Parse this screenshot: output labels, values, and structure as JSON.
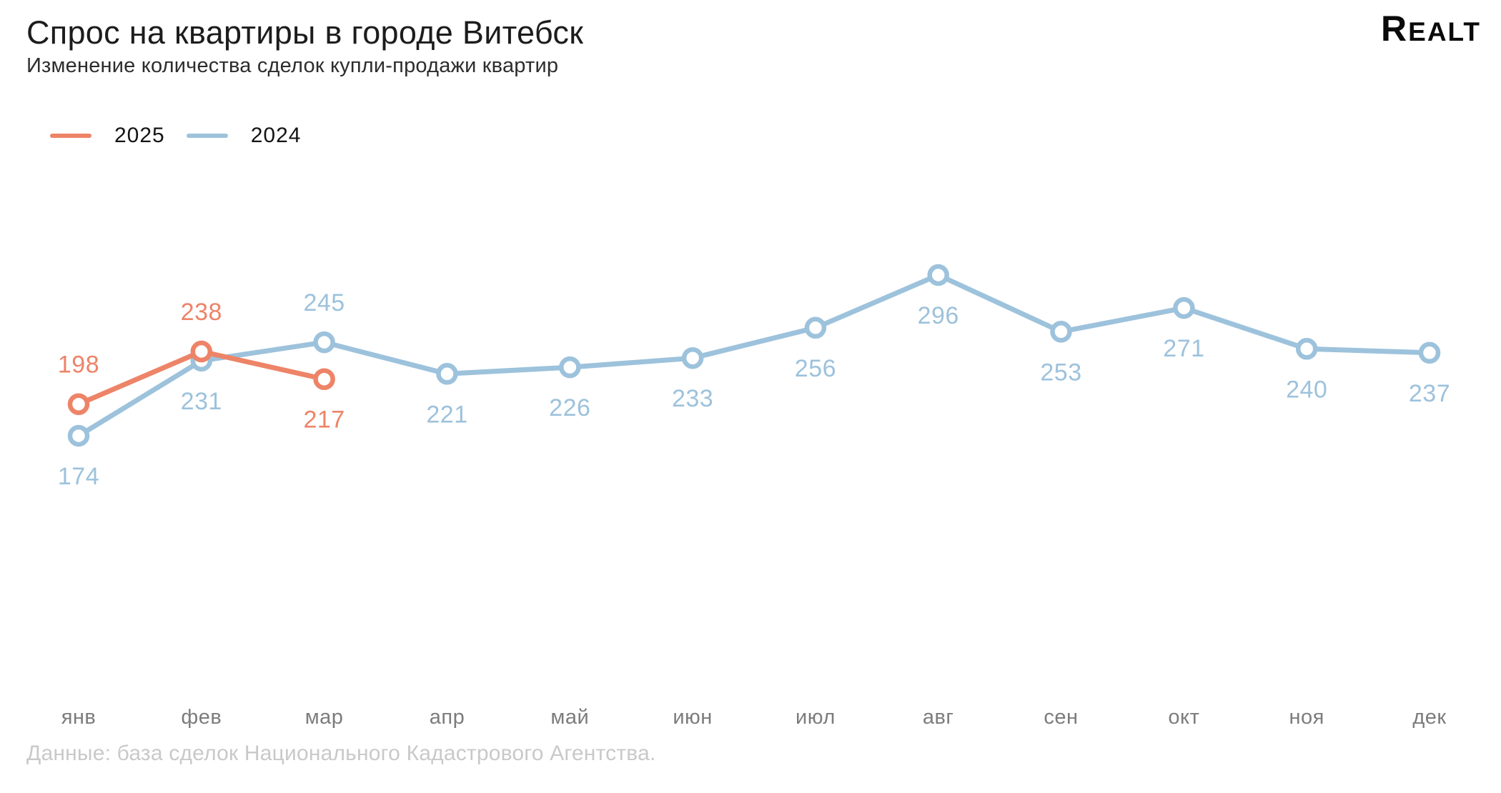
{
  "header": {
    "title": "Спрос на квартиры в городе Витебск",
    "subtitle": "Изменение количества сделок купли-продажи квартир",
    "logo": "Realt"
  },
  "legend": {
    "position": "top-left",
    "items": [
      {
        "label": "2025",
        "color": "#ED8468"
      },
      {
        "label": "2024",
        "color": "#9DC2DC"
      }
    ]
  },
  "chart_data": {
    "type": "line",
    "title": "Спрос на квартиры в городе Витебск",
    "subtitle": "Изменение количества сделок купли-продажи квартир",
    "xlabel": "",
    "ylabel": "",
    "grid": false,
    "axes_visible": false,
    "legend_position": "top-left",
    "markers": "open-circle",
    "data_labels": true,
    "value_range": [
      174,
      296
    ],
    "categories": [
      "янв",
      "фев",
      "мар",
      "апр",
      "май",
      "июн",
      "июл",
      "авг",
      "сен",
      "окт",
      "ноя",
      "дек"
    ],
    "series": [
      {
        "name": "2024",
        "color": "#9DC2DC",
        "values": [
          174,
          231,
          245,
          221,
          226,
          233,
          256,
          296,
          253,
          271,
          240,
          237
        ],
        "label_positions": [
          "below",
          "below",
          "above",
          "below",
          "below",
          "below",
          "below",
          "below",
          "below",
          "below",
          "below",
          "below"
        ]
      },
      {
        "name": "2025",
        "color": "#ED8468",
        "values": [
          198,
          238,
          217
        ],
        "label_positions": [
          "above",
          "above",
          "below"
        ]
      }
    ]
  },
  "footer": {
    "source": "Данные: база сделок Национального Кадастрового Агентства."
  }
}
